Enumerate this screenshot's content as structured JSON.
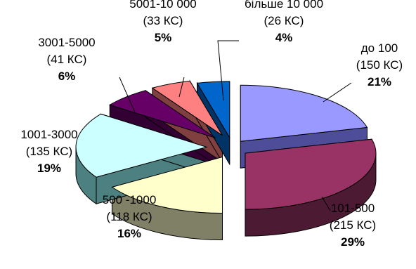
{
  "chart_data": {
    "type": "pie",
    "title": "",
    "slices": [
      {
        "label": "до 100",
        "count": "(150 КС)",
        "percent": "21%",
        "value": 21,
        "color": "#9999ff",
        "side": "#4d4d99",
        "label_pos": "right"
      },
      {
        "label": "101-500",
        "count": "(215 КС)",
        "percent": "29%",
        "value": 29,
        "color": "#993366",
        "side": "#4d1a33",
        "label_pos": "bottom-right"
      },
      {
        "label": "500 -1000",
        "count": "(118 КС)",
        "percent": "16%",
        "value": 16,
        "color": "#ffffcc",
        "side": "#808066",
        "label_pos": "bottom"
      },
      {
        "label": "1001-3000",
        "count": "(135 КС)",
        "percent": "19%",
        "value": 19,
        "color": "#ccffff",
        "side": "#4d8080",
        "label_pos": "left"
      },
      {
        "label": "3001-5000",
        "count": "(41 КС)",
        "percent": "6%",
        "value": 6,
        "color": "#660066",
        "side": "#330033",
        "label_pos": "top-left"
      },
      {
        "label": "5001-10 000",
        "count": "(33 КС)",
        "percent": "5%",
        "value": 5,
        "color": "#ff8080",
        "side": "#804040",
        "label_pos": "top"
      },
      {
        "label": "більше 10 000",
        "count": "(26 КС)",
        "percent": "4%",
        "value": 4,
        "color": "#0066cc",
        "side": "#003366",
        "label_pos": "top"
      }
    ],
    "exploded": true,
    "three_d": true,
    "legend": "none"
  }
}
